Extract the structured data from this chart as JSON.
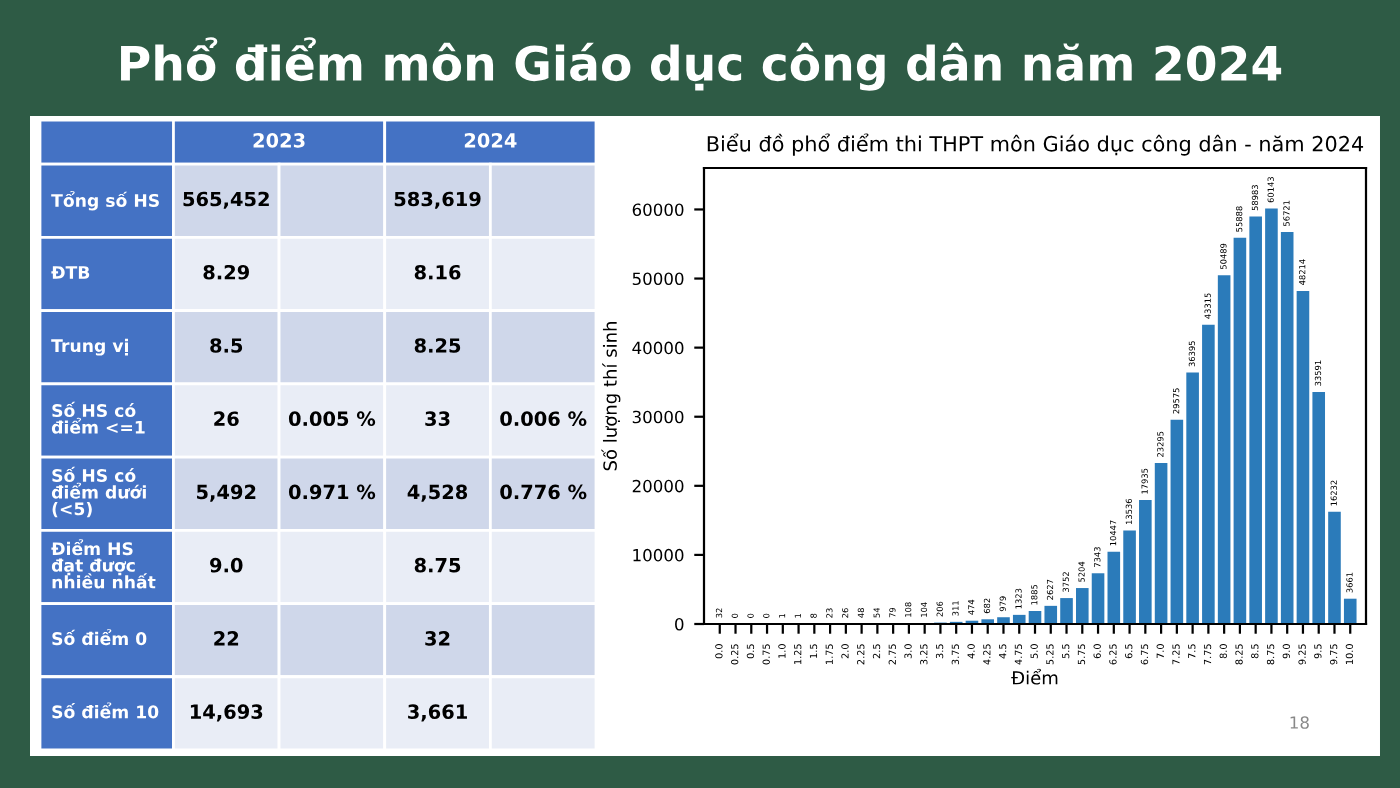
{
  "chart_data": [
    {
      "type": "other",
      "title": "Phổ điểm môn Giáo dục công dân năm 2024",
      "categories": [
        "2023",
        "2024"
      ],
      "y_categories": [
        "Tổng số HS",
        "ĐTB",
        "Trung vị",
        "Số HS có\nđiểm <=1",
        "Số HS có\nđiểm dưới\n(<5)",
        "Điểm HS\nđạt được\nnhiều nhất",
        "Số điểm 0",
        "Số điểm 10"
      ],
      "cell_labels": [
        [
          "565,452",
          null,
          "583,619",
          null
        ],
        [
          "8.29",
          null,
          "8.16",
          null
        ],
        [
          "8.5",
          null,
          "8.25",
          null
        ],
        [
          "26",
          "0.005 %",
          "33",
          "0.006 %"
        ],
        [
          "5,492",
          "0.971 %",
          "4,528",
          "0.776 %"
        ],
        [
          "9.0",
          null,
          "8.75",
          null
        ],
        [
          "22",
          null,
          "32",
          null
        ],
        [
          "14,693",
          null,
          "3,661",
          null
        ]
      ]
    },
    {
      "type": "bar",
      "title": "Biểu đồ phổ điểm thi THPT môn Giáo dục công dân - năm 2024",
      "xlabel": "Điểm",
      "ylabel": "Số lượng thí sinh",
      "categories": [
        "0.0",
        "0.25",
        "0.5",
        "0.75",
        "1.0",
        "1.25",
        "1.5",
        "1.75",
        "2.0",
        "2.25",
        "2.5",
        "2.75",
        "3.0",
        "3.25",
        "3.5",
        "3.75",
        "4.0",
        "4.25",
        "4.5",
        "4.75",
        "5.0",
        "5.25",
        "5.5",
        "5.75",
        "6.0",
        "6.25",
        "6.5",
        "6.75",
        "7.0",
        "7.25",
        "7.5",
        "7.75",
        "8.0",
        "8.25",
        "8.5",
        "8.75",
        "9.0",
        "9.25",
        "9.5",
        "9.75",
        "10.0"
      ],
      "values": [
        32,
        0,
        0,
        0,
        1,
        1,
        8,
        23,
        26,
        48,
        54,
        79,
        108,
        104,
        206,
        311,
        474,
        682,
        979,
        1323,
        1885,
        2627,
        3752,
        5204,
        7343,
        10447,
        13536,
        17935,
        23295,
        29575,
        36395,
        43315,
        50489,
        55888,
        58983,
        60143,
        56721,
        48214,
        33591,
        16232,
        3661
      ],
      "color": "#2b7bba",
      "data_labels": true,
      "ylim": [
        0,
        66000
      ],
      "yticks": [
        0,
        10000,
        20000,
        30000,
        40000,
        50000,
        60000
      ],
      "grid": false,
      "annotations": [
        "18"
      ]
    }
  ]
}
